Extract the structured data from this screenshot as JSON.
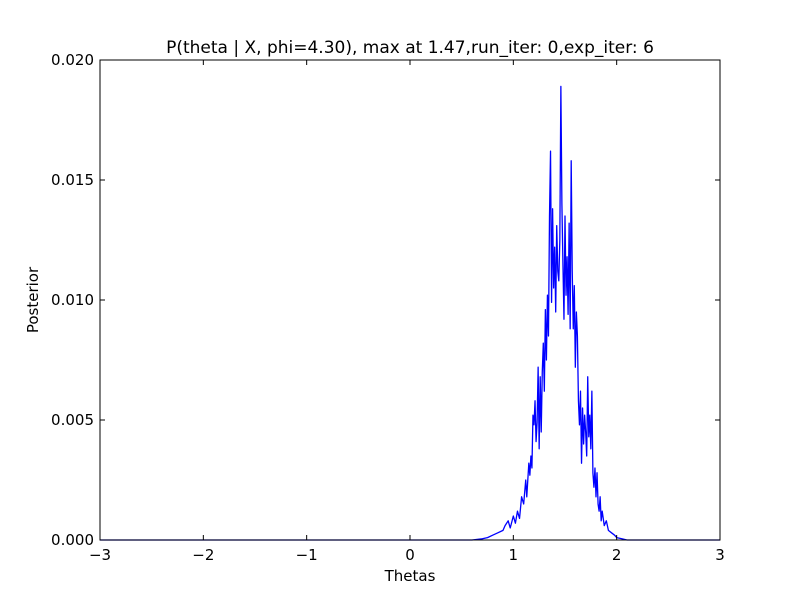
{
  "chart_data": {
    "type": "line",
    "title": "P(theta | X, phi=4.30), max at 1.47,run_iter: 0,exp_iter: 6",
    "xlabel": "Thetas",
    "ylabel": "Posterior",
    "xlim": [
      -3,
      3
    ],
    "ylim": [
      0,
      0.02
    ],
    "x_ticks": [
      -3,
      -2,
      -1,
      0,
      1,
      2,
      3
    ],
    "x_tick_labels": [
      "−3",
      "−2",
      "−1",
      "0",
      "1",
      "2",
      "3"
    ],
    "y_ticks": [
      0,
      0.005,
      0.01,
      0.015,
      0.02
    ],
    "y_tick_labels": [
      "0.000",
      "0.005",
      "0.010",
      "0.015",
      "0.020"
    ],
    "grid": false,
    "legend": "none",
    "line_color": "#0000ff",
    "series": [
      {
        "x": [
          -3.0,
          0.6,
          0.7,
          0.75,
          0.8,
          0.85,
          0.9,
          0.92,
          0.95,
          0.97,
          1.0,
          1.02,
          1.04,
          1.06,
          1.08,
          1.1,
          1.12,
          1.13,
          1.15,
          1.16,
          1.17,
          1.18,
          1.19,
          1.2,
          1.21,
          1.22,
          1.23,
          1.24,
          1.25,
          1.26,
          1.27,
          1.28,
          1.29,
          1.3,
          1.31,
          1.32,
          1.33,
          1.34,
          1.35,
          1.36,
          1.37,
          1.38,
          1.39,
          1.4,
          1.41,
          1.42,
          1.43,
          1.44,
          1.45,
          1.46,
          1.47,
          1.48,
          1.49,
          1.5,
          1.51,
          1.52,
          1.53,
          1.54,
          1.55,
          1.56,
          1.57,
          1.58,
          1.59,
          1.6,
          1.61,
          1.62,
          1.63,
          1.64,
          1.65,
          1.66,
          1.67,
          1.68,
          1.69,
          1.7,
          1.71,
          1.72,
          1.73,
          1.74,
          1.75,
          1.76,
          1.77,
          1.78,
          1.79,
          1.8,
          1.81,
          1.82,
          1.83,
          1.84,
          1.85,
          1.86,
          1.88,
          1.9,
          1.92,
          1.95,
          1.98,
          2.0,
          2.05,
          2.1,
          2.2,
          2.3,
          3.0
        ],
        "y": [
          0.0,
          0.0,
          5e-05,
          0.0001,
          0.0002,
          0.0003,
          0.0004,
          0.0006,
          0.0008,
          0.0005,
          0.001,
          0.0007,
          0.0012,
          0.0009,
          0.0018,
          0.0015,
          0.0025,
          0.0018,
          0.0032,
          0.0027,
          0.0035,
          0.003,
          0.0052,
          0.0048,
          0.0058,
          0.0041,
          0.0049,
          0.0072,
          0.0038,
          0.0068,
          0.0045,
          0.007,
          0.0082,
          0.0062,
          0.0096,
          0.0075,
          0.0102,
          0.0085,
          0.0135,
          0.0162,
          0.0099,
          0.0138,
          0.0105,
          0.0122,
          0.0095,
          0.0131,
          0.0112,
          0.0108,
          0.0125,
          0.0189,
          0.014,
          0.0115,
          0.0092,
          0.0135,
          0.0102,
          0.0118,
          0.0094,
          0.0132,
          0.0088,
          0.0158,
          0.0112,
          0.0088,
          0.0106,
          0.0072,
          0.0095,
          0.0085,
          0.0058,
          0.0048,
          0.0062,
          0.0032,
          0.0055,
          0.004,
          0.0052,
          0.0045,
          0.0035,
          0.0068,
          0.0043,
          0.0052,
          0.0038,
          0.0062,
          0.0028,
          0.0022,
          0.003,
          0.0018,
          0.0028,
          0.0015,
          0.0012,
          0.0018,
          0.0008,
          0.0012,
          0.0006,
          0.0008,
          0.0004,
          0.0003,
          0.0002,
          0.0001,
          5e-05,
          0.0,
          0.0,
          0.0,
          0.0
        ]
      }
    ]
  }
}
